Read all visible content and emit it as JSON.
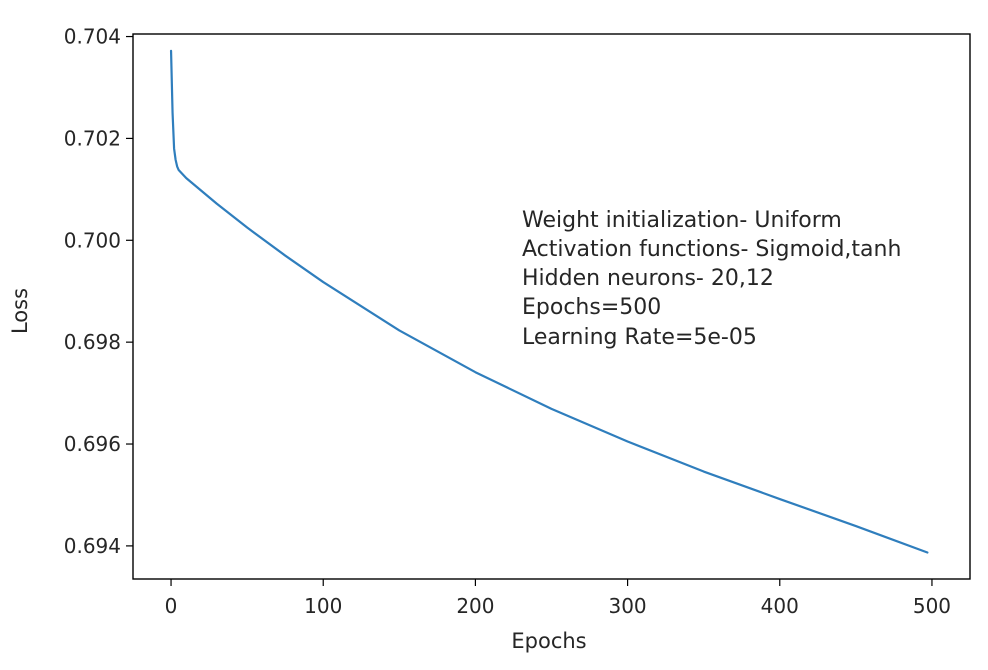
{
  "chart_data": {
    "type": "line",
    "title": "",
    "xlabel": "Epochs",
    "ylabel": "Loss",
    "xlim": [
      -25,
      525
    ],
    "ylim": [
      0.69335,
      0.70405
    ],
    "x_ticks": [
      0,
      100,
      200,
      300,
      400,
      500
    ],
    "x_tick_labels": [
      "0",
      "100",
      "200",
      "300",
      "400",
      "500"
    ],
    "y_ticks": [
      0.694,
      0.696,
      0.698,
      0.7,
      0.702,
      0.704
    ],
    "y_tick_labels": [
      "0.694",
      "0.696",
      "0.698",
      "0.700",
      "0.702",
      "0.704"
    ],
    "grid": false,
    "line_color": "#2f7ebd",
    "series": [
      {
        "x": [
          0,
          1,
          2,
          3,
          4,
          5,
          10,
          20,
          30,
          50,
          75,
          100,
          150,
          200,
          250,
          300,
          350,
          400,
          450,
          497
        ],
        "values": [
          0.70372,
          0.7025,
          0.7018,
          0.70158,
          0.70145,
          0.70138,
          0.70122,
          0.70097,
          0.70072,
          0.70025,
          0.6997,
          0.69918,
          0.69823,
          0.69741,
          0.69669,
          0.69605,
          0.69546,
          0.69492,
          0.69439,
          0.69387
        ]
      }
    ],
    "annotation_lines": [
      "Weight initialization- Uniform",
      "Activation functions- Sigmoid,tanh",
      "Hidden neurons- 20,12",
      "Epochs=500",
      "Learning Rate=5e-05"
    ]
  }
}
